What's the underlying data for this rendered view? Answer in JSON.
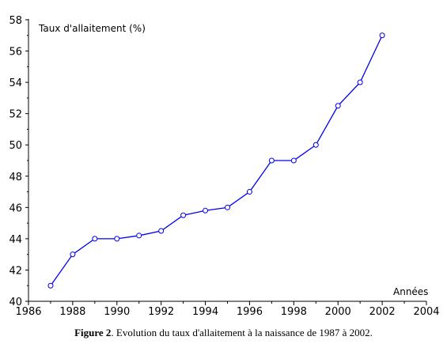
{
  "chart_data": {
    "type": "line",
    "ylabel": "Taux d'allaitement (%)",
    "xlabel": "Années",
    "xlim": [
      1986,
      2004
    ],
    "ylim": [
      40,
      58
    ],
    "x_ticks": [
      1986,
      1988,
      1990,
      1992,
      1994,
      1996,
      1998,
      2000,
      2002,
      2004
    ],
    "y_ticks": [
      40,
      42,
      44,
      46,
      48,
      50,
      52,
      54,
      56,
      58
    ],
    "grid": false,
    "series": [
      {
        "x": [
          1987,
          1988,
          1989,
          1990,
          1991,
          1992,
          1993,
          1994,
          1995,
          1996,
          1997,
          1998,
          1999,
          2000,
          2001,
          2002
        ],
        "y": [
          41,
          43,
          44,
          44,
          44.2,
          44.5,
          45.5,
          45.8,
          46,
          47,
          49,
          49,
          50,
          52.5,
          54,
          57
        ]
      }
    ],
    "line_color": "#0000ee",
    "marker": "open-circle"
  },
  "caption": {
    "label": "Figure 2",
    "text": ". Evolution du taux d'allaitement à la naissance de 1987 à 2002."
  }
}
